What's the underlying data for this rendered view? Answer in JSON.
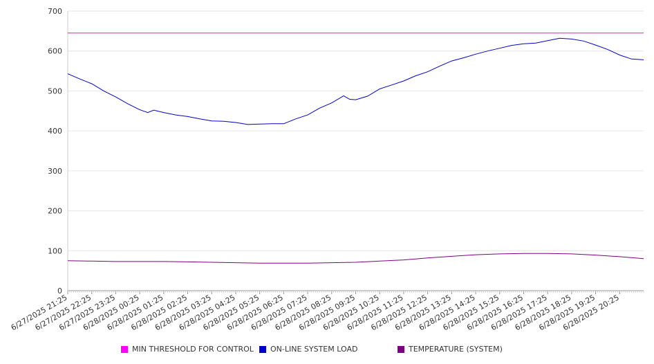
{
  "chart_data": {
    "type": "line",
    "ylim": [
      0,
      700
    ],
    "yticks": [
      0,
      100,
      200,
      300,
      400,
      500,
      600,
      700
    ],
    "grid": true,
    "legend_position": "bottom",
    "x_labels": [
      "6/27/2025 21:25",
      "6/27/2025 22:25",
      "6/27/2025 23:25",
      "6/28/2025 00:25",
      "6/28/2025 01:25",
      "6/28/2025 02:25",
      "6/28/2025 03:25",
      "6/28/2025 04:25",
      "6/28/2025 05:25",
      "6/28/2025 06:25",
      "6/28/2025 07:25",
      "6/28/2025 08:25",
      "6/28/2025 09:25",
      "6/28/2025 10:25",
      "6/28/2025 11:25",
      "6/28/2025 12:25",
      "6/28/2025 13:25",
      "6/28/2025 14:25",
      "6/28/2025 15:25",
      "6/28/2025 16:25",
      "6/28/2025 17:25",
      "6/28/2025 18:25",
      "6/28/2025 19:25",
      "6/28/2025 20:25"
    ],
    "series": [
      {
        "name": "MIN THRESHOLD FOR CONTROL",
        "color": "#ff00ff",
        "points": [
          [
            "6/27/2025 21:25",
            645
          ],
          [
            "6/28/2025 21:25",
            645
          ]
        ]
      },
      {
        "name": "ON-LINE SYSTEM LOAD",
        "color": "#0000cc",
        "points": [
          [
            "6/27/2025 21:25",
            543
          ],
          [
            "6/27/2025 21:55",
            530
          ],
          [
            "6/27/2025 22:25",
            518
          ],
          [
            "6/27/2025 22:55",
            500
          ],
          [
            "6/27/2025 23:25",
            485
          ],
          [
            "6/27/2025 23:55",
            468
          ],
          [
            "6/28/2025 00:25",
            453
          ],
          [
            "6/28/2025 00:45",
            446
          ],
          [
            "6/28/2025 01:00",
            452
          ],
          [
            "6/28/2025 01:25",
            446
          ],
          [
            "6/28/2025 01:55",
            440
          ],
          [
            "6/28/2025 02:25",
            436
          ],
          [
            "6/28/2025 02:55",
            430
          ],
          [
            "6/28/2025 03:25",
            425
          ],
          [
            "6/28/2025 03:55",
            424
          ],
          [
            "6/28/2025 04:25",
            421
          ],
          [
            "6/28/2025 04:55",
            416
          ],
          [
            "6/28/2025 05:25",
            417
          ],
          [
            "6/28/2025 05:55",
            418
          ],
          [
            "6/28/2025 06:25",
            418
          ],
          [
            "6/28/2025 06:55",
            430
          ],
          [
            "6/28/2025 07:25",
            440
          ],
          [
            "6/28/2025 07:55",
            457
          ],
          [
            "6/28/2025 08:25",
            470
          ],
          [
            "6/28/2025 08:55",
            488
          ],
          [
            "6/28/2025 09:10",
            479
          ],
          [
            "6/28/2025 09:25",
            478
          ],
          [
            "6/28/2025 09:55",
            487
          ],
          [
            "6/28/2025 10:25",
            505
          ],
          [
            "6/28/2025 10:55",
            515
          ],
          [
            "6/28/2025 11:25",
            525
          ],
          [
            "6/28/2025 11:55",
            538
          ],
          [
            "6/28/2025 12:25",
            548
          ],
          [
            "6/28/2025 12:55",
            562
          ],
          [
            "6/28/2025 13:25",
            575
          ],
          [
            "6/28/2025 13:55",
            583
          ],
          [
            "6/28/2025 14:25",
            592
          ],
          [
            "6/28/2025 14:55",
            600
          ],
          [
            "6/28/2025 15:25",
            607
          ],
          [
            "6/28/2025 15:55",
            614
          ],
          [
            "6/28/2025 16:25",
            618
          ],
          [
            "6/28/2025 16:55",
            620
          ],
          [
            "6/28/2025 17:25",
            626
          ],
          [
            "6/28/2025 17:55",
            632
          ],
          [
            "6/28/2025 18:25",
            630
          ],
          [
            "6/28/2025 18:55",
            625
          ],
          [
            "6/28/2025 19:25",
            615
          ],
          [
            "6/28/2025 19:55",
            604
          ],
          [
            "6/28/2025 20:25",
            590
          ],
          [
            "6/28/2025 20:55",
            580
          ],
          [
            "6/28/2025 21:25",
            578
          ]
        ]
      },
      {
        "name": "TEMPERATURE (SYSTEM)",
        "color": "#800080",
        "points": [
          [
            "6/27/2025 21:25",
            75
          ],
          [
            "6/27/2025 22:25",
            74
          ],
          [
            "6/27/2025 23:25",
            73
          ],
          [
            "6/28/2025 00:25",
            73
          ],
          [
            "6/28/2025 01:25",
            73
          ],
          [
            "6/28/2025 02:25",
            72
          ],
          [
            "6/28/2025 03:25",
            71
          ],
          [
            "6/28/2025 04:25",
            70
          ],
          [
            "6/28/2025 05:25",
            69
          ],
          [
            "6/28/2025 06:25",
            69
          ],
          [
            "6/28/2025 07:25",
            69
          ],
          [
            "6/28/2025 08:25",
            70
          ],
          [
            "6/28/2025 09:25",
            71
          ],
          [
            "6/28/2025 10:25",
            74
          ],
          [
            "6/28/2025 11:25",
            77
          ],
          [
            "6/28/2025 12:25",
            82
          ],
          [
            "6/28/2025 13:25",
            86
          ],
          [
            "6/28/2025 14:25",
            90
          ],
          [
            "6/28/2025 15:25",
            92
          ],
          [
            "6/28/2025 16:25",
            93
          ],
          [
            "6/28/2025 17:25",
            93
          ],
          [
            "6/28/2025 18:25",
            92
          ],
          [
            "6/28/2025 19:25",
            89
          ],
          [
            "6/28/2025 20:25",
            85
          ],
          [
            "6/28/2025 21:25",
            80
          ]
        ]
      }
    ]
  }
}
